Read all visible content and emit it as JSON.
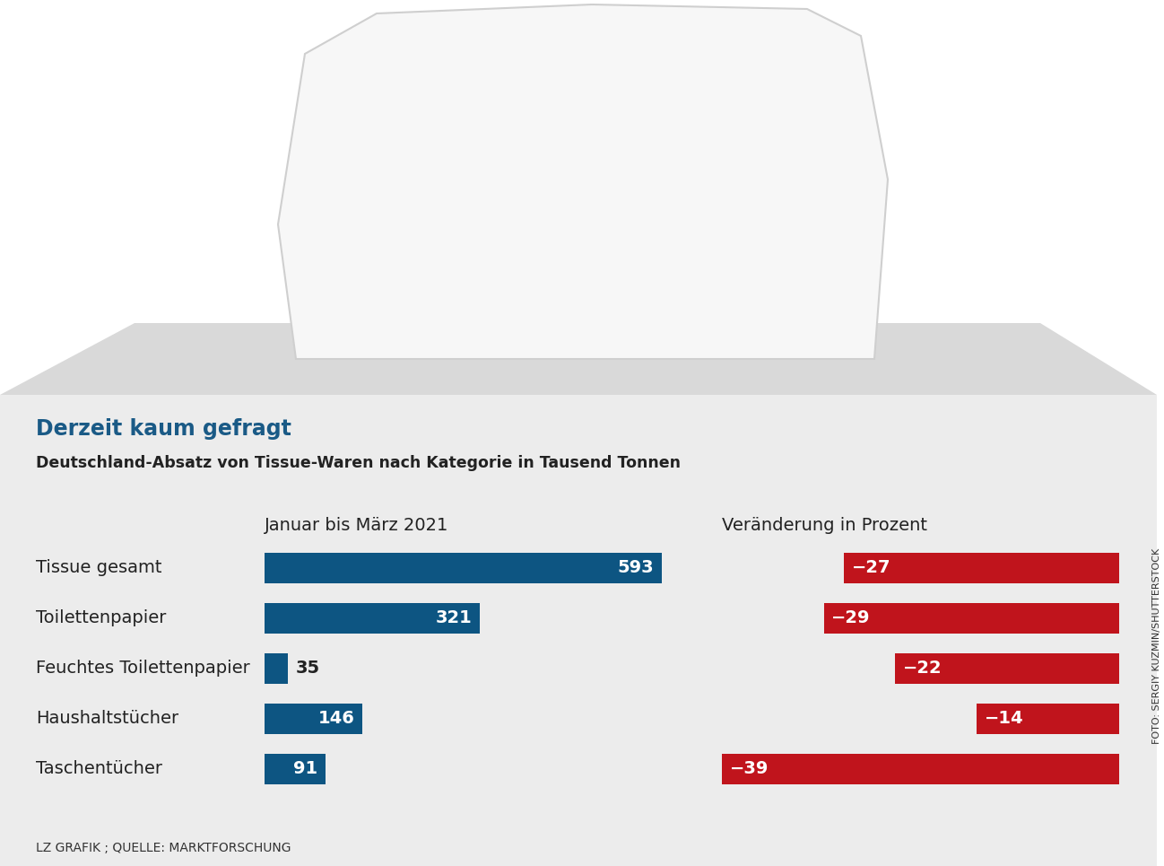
{
  "title": "Derzeit kaum gefragt",
  "subtitle": "Deutschland-Absatz von Tissue-Waren nach Kategorie in Tausend Tonnen",
  "source": "LZ GRAFIK ; QUELLE: MARKTFORSCHUNG",
  "credit": "FOTO: SERGIY KUZMIN/SHUTTERSTOCK",
  "chart_data": [
    {
      "type": "bar",
      "orientation": "horizontal",
      "title": "Januar bis März 2021",
      "categories": [
        "Tissue gesamt",
        "Toilettenpapier",
        "Feuchtes Toilettenpapier",
        "Haushaltstücher",
        "Taschentücher"
      ],
      "values": [
        593,
        321,
        35,
        146,
        91
      ],
      "color": "#0d5582",
      "xlim": [
        0,
        593
      ],
      "data_labels": true,
      "tick_labels": false
    },
    {
      "type": "bar",
      "orientation": "horizontal",
      "title": "Veränderung in Prozent",
      "values": [
        -27,
        -29,
        -22,
        -14,
        -39
      ],
      "value_labels": [
        "−27",
        "−29",
        "−22",
        "−14",
        "−39"
      ],
      "color": "#c0141c",
      "xlim": [
        -39,
        0
      ],
      "data_labels": true,
      "tick_labels": false
    }
  ]
}
